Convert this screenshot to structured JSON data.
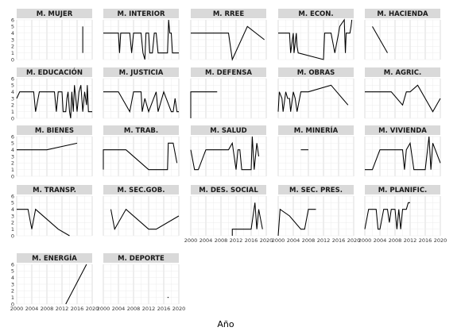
{
  "chart_data": {
    "type": "line",
    "xlabel": "Año",
    "ylabel": "",
    "xlim": [
      2000,
      2020
    ],
    "ylim": [
      0,
      6
    ],
    "x_ticks": [
      2000,
      2004,
      2008,
      2012,
      2016,
      2020
    ],
    "y_ticks": [
      0,
      1,
      2,
      3,
      4,
      5,
      6
    ],
    "grid": true,
    "panels": [
      {
        "name": "M. MUJER",
        "x_axis": false,
        "points": [
          [
            2017.5,
            1
          ],
          [
            2017.5,
            5
          ]
        ]
      },
      {
        "name": "M. INTERIOR",
        "x_axis": false,
        "points": [
          [
            2000,
            4
          ],
          [
            2004,
            4
          ],
          [
            2004.3,
            1
          ],
          [
            2004.6,
            4
          ],
          [
            2007,
            4
          ],
          [
            2007.5,
            1
          ],
          [
            2008,
            4
          ],
          [
            2010,
            4
          ],
          [
            2010.5,
            1
          ],
          [
            2011,
            0
          ],
          [
            2011.3,
            4
          ],
          [
            2012,
            4
          ],
          [
            2012.3,
            1
          ],
          [
            2013,
            1
          ],
          [
            2013.5,
            4
          ],
          [
            2014,
            4
          ],
          [
            2014.5,
            1
          ],
          [
            2017,
            1
          ],
          [
            2017.3,
            6
          ],
          [
            2017.6,
            4
          ],
          [
            2018,
            4
          ],
          [
            2018.3,
            1
          ],
          [
            2020,
            1
          ]
        ]
      },
      {
        "name": "M. RREE",
        "x_axis": false,
        "points": [
          [
            2000,
            4
          ],
          [
            2010,
            4
          ],
          [
            2011,
            0
          ],
          [
            2015,
            5
          ],
          [
            2019.5,
            3
          ]
        ]
      },
      {
        "name": "M. ECON.",
        "x_axis": false,
        "points": [
          [
            2000,
            4
          ],
          [
            2003,
            4
          ],
          [
            2003.3,
            1
          ],
          [
            2004,
            4
          ],
          [
            2004.2,
            1
          ],
          [
            2004.8,
            4
          ],
          [
            2005,
            2
          ],
          [
            2005.3,
            1
          ],
          [
            2012,
            0
          ],
          [
            2012.3,
            4
          ],
          [
            2014,
            4
          ],
          [
            2015,
            1
          ],
          [
            2016,
            4
          ],
          [
            2016.3,
            5
          ],
          [
            2017.5,
            6
          ],
          [
            2017.8,
            1
          ],
          [
            2018,
            4
          ],
          [
            2019,
            4
          ],
          [
            2019.3,
            5
          ],
          [
            2019.5,
            6
          ]
        ]
      },
      {
        "name": "M. HACIENDA",
        "x_axis": false,
        "points": [
          [
            2002,
            5
          ],
          [
            2006,
            1
          ]
        ]
      },
      {
        "name": "M. EDUCACIÓN",
        "x_axis": false,
        "points": [
          [
            2000,
            3
          ],
          [
            2000.8,
            4
          ],
          [
            2004.5,
            4
          ],
          [
            2005,
            1
          ],
          [
            2006,
            4
          ],
          [
            2010,
            4
          ],
          [
            2010.5,
            1
          ],
          [
            2011,
            4
          ],
          [
            2012,
            4
          ],
          [
            2012.3,
            1
          ],
          [
            2013,
            1
          ],
          [
            2013.3,
            3
          ],
          [
            2013.6,
            4
          ],
          [
            2014,
            1
          ],
          [
            2014.3,
            0
          ],
          [
            2014.6,
            4
          ],
          [
            2015,
            1
          ],
          [
            2015.3,
            5
          ],
          [
            2016,
            1
          ],
          [
            2016.5,
            4
          ],
          [
            2017,
            5
          ],
          [
            2017.5,
            1
          ],
          [
            2018,
            4
          ],
          [
            2018.5,
            2
          ],
          [
            2018.7,
            5
          ],
          [
            2019,
            1
          ],
          [
            2020,
            1
          ]
        ]
      },
      {
        "name": "M. JUSTICIA",
        "x_axis": false,
        "points": [
          [
            2000,
            4
          ],
          [
            2004,
            4
          ],
          [
            2007,
            1
          ],
          [
            2008,
            4
          ],
          [
            2010,
            4
          ],
          [
            2010.3,
            1
          ],
          [
            2011,
            3
          ],
          [
            2012,
            1
          ],
          [
            2014,
            4
          ],
          [
            2014.5,
            1
          ],
          [
            2016,
            4
          ],
          [
            2018,
            1
          ],
          [
            2018.5,
            1
          ],
          [
            2019,
            3
          ],
          [
            2019.5,
            1
          ],
          [
            2020,
            1
          ]
        ]
      },
      {
        "name": "M. DEFENSA",
        "x_axis": false,
        "points": [
          [
            2000,
            0
          ],
          [
            2000,
            4
          ],
          [
            2007,
            4
          ]
        ]
      },
      {
        "name": "M. OBRAS",
        "x_axis": false,
        "points": [
          [
            2000,
            1
          ],
          [
            2000.3,
            4
          ],
          [
            2001,
            3
          ],
          [
            2001.3,
            1
          ],
          [
            2002,
            4
          ],
          [
            2002.5,
            3
          ],
          [
            2003,
            3
          ],
          [
            2003.3,
            1
          ],
          [
            2004,
            4
          ],
          [
            2004.5,
            3
          ],
          [
            2005,
            1
          ],
          [
            2006,
            4
          ],
          [
            2008,
            4
          ],
          [
            2014,
            5
          ],
          [
            2018.5,
            2
          ]
        ]
      },
      {
        "name": "M. AGRIC.",
        "x_axis": false,
        "points": [
          [
            2000,
            4
          ],
          [
            2007,
            4
          ],
          [
            2010,
            2
          ],
          [
            2011,
            4
          ],
          [
            2012,
            4
          ],
          [
            2014,
            5
          ],
          [
            2018,
            1
          ],
          [
            2019,
            2
          ],
          [
            2020,
            3
          ]
        ]
      },
      {
        "name": "M. BIENES",
        "x_axis": false,
        "points": [
          [
            2000,
            4
          ],
          [
            2008,
            4
          ],
          [
            2012,
            4.5
          ],
          [
            2016,
            5
          ]
        ]
      },
      {
        "name": "M. TRAB.",
        "x_axis": false,
        "points": [
          [
            2000,
            1
          ],
          [
            2000,
            4
          ],
          [
            2006,
            4
          ],
          [
            2012,
            1
          ],
          [
            2016,
            1
          ],
          [
            2017,
            1
          ],
          [
            2017.2,
            5
          ],
          [
            2018.5,
            5
          ],
          [
            2019.5,
            2
          ]
        ]
      },
      {
        "name": "M. SALUD",
        "x_axis": false,
        "points": [
          [
            2000,
            4
          ],
          [
            2001,
            1
          ],
          [
            2002,
            1
          ],
          [
            2004,
            4
          ],
          [
            2010,
            4
          ],
          [
            2011,
            5
          ],
          [
            2012,
            1
          ],
          [
            2012.5,
            4
          ],
          [
            2013,
            4
          ],
          [
            2013.5,
            1
          ],
          [
            2016,
            1
          ],
          [
            2016.3,
            6
          ],
          [
            2016.8,
            1
          ],
          [
            2017.5,
            5
          ],
          [
            2018,
            3
          ]
        ]
      },
      {
        "name": "M. MINERÍA",
        "x_axis": false,
        "points": [
          [
            2006,
            4
          ],
          [
            2008,
            4
          ]
        ]
      },
      {
        "name": "M. VIVIENDA",
        "x_axis": false,
        "points": [
          [
            2000,
            1
          ],
          [
            2002,
            1
          ],
          [
            2004,
            4
          ],
          [
            2010,
            4
          ],
          [
            2010.5,
            1
          ],
          [
            2011,
            4
          ],
          [
            2012,
            5
          ],
          [
            2013,
            1
          ],
          [
            2016,
            1
          ],
          [
            2017,
            6
          ],
          [
            2017.5,
            1
          ],
          [
            2018,
            5
          ],
          [
            2020,
            2
          ]
        ]
      },
      {
        "name": "M. TRANSP.",
        "x_axis": false,
        "points": [
          [
            2000,
            4
          ],
          [
            2003,
            4
          ],
          [
            2004,
            1
          ],
          [
            2005,
            4
          ],
          [
            2009,
            2
          ],
          [
            2011,
            1
          ],
          [
            2014,
            0
          ]
        ]
      },
      {
        "name": "M. SEC.GOB.",
        "x_axis": false,
        "points": [
          [
            2002,
            4
          ],
          [
            2003,
            1
          ],
          [
            2006,
            4
          ],
          [
            2012,
            1
          ],
          [
            2014,
            1
          ],
          [
            2020,
            3
          ]
        ]
      },
      {
        "name": "M. DES. SOCIAL",
        "x_axis": true,
        "points": [
          [
            2011,
            0
          ],
          [
            2011,
            1
          ],
          [
            2016,
            1
          ],
          [
            2017,
            5
          ],
          [
            2017.5,
            1
          ],
          [
            2018,
            4
          ],
          [
            2019,
            1
          ]
        ]
      },
      {
        "name": "M. SEC. PRES.",
        "x_axis": true,
        "points": [
          [
            2000,
            0
          ],
          [
            2000.5,
            4
          ],
          [
            2003,
            3
          ],
          [
            2006,
            1
          ],
          [
            2007,
            1
          ],
          [
            2008,
            4
          ],
          [
            2010,
            4
          ]
        ]
      },
      {
        "name": "M. PLANIFIC.",
        "x_axis": true,
        "points": [
          [
            2000,
            1
          ],
          [
            2001,
            4
          ],
          [
            2003,
            4
          ],
          [
            2003.5,
            1
          ],
          [
            2004,
            1
          ],
          [
            2005,
            4
          ],
          [
            2006,
            4
          ],
          [
            2006.5,
            2
          ],
          [
            2007,
            4
          ],
          [
            2008,
            4
          ],
          [
            2008.5,
            1
          ],
          [
            2009,
            4
          ],
          [
            2009.5,
            1
          ],
          [
            2010,
            4
          ],
          [
            2011,
            4
          ],
          [
            2011.5,
            5
          ],
          [
            2012,
            5
          ]
        ]
      },
      {
        "name": "M. ENERGÍA",
        "x_axis": true,
        "points": [
          [
            2013,
            0
          ],
          [
            2018.5,
            6
          ]
        ]
      },
      {
        "name": "M. DEPORTE",
        "x_axis": true,
        "points": [
          [
            2017,
            1
          ],
          [
            2017.3,
            1
          ]
        ]
      }
    ]
  }
}
